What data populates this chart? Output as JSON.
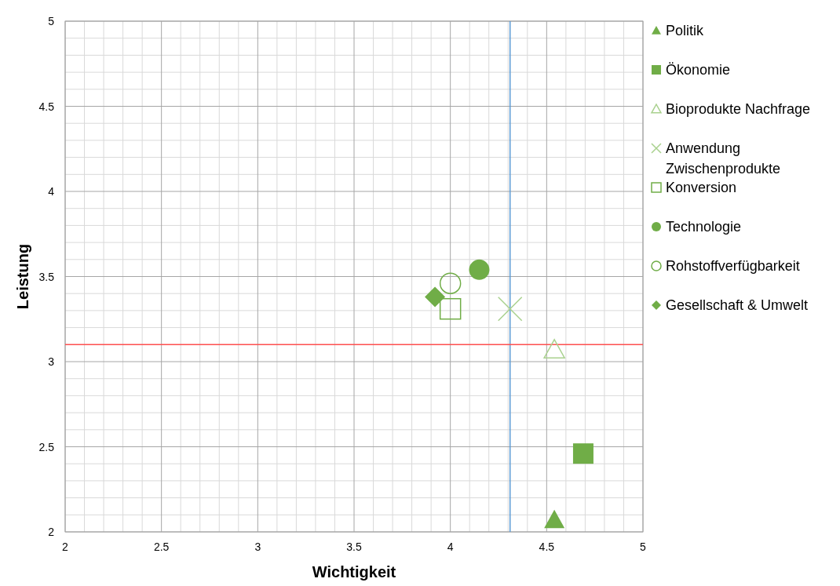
{
  "chart_data": {
    "type": "scatter",
    "xlabel": "Wichtigkeit",
    "ylabel": "Leistung",
    "xlim": [
      2,
      5
    ],
    "xticks": [
      2,
      2.5,
      3,
      3.5,
      4,
      4.5,
      5
    ],
    "ylim": [
      2,
      5
    ],
    "yticks": [
      2,
      2.5,
      3,
      3.5,
      4,
      4.5,
      5
    ],
    "grid": true,
    "legend": "right",
    "series": [
      {
        "name": "Politik",
        "color": "#70ad47",
        "marker": "triangle",
        "x": [
          4.54
        ],
        "values": [
          2.07
        ]
      },
      {
        "name": "Ökonomie",
        "color": "#70ad47",
        "marker": "square",
        "x": [
          4.69
        ],
        "values": [
          2.46
        ]
      },
      {
        "name": "Bioprodukte Nachfrage",
        "color": "#a9d18e",
        "marker": "triangle-open",
        "x": [
          4.54
        ],
        "values": [
          3.07
        ]
      },
      {
        "name": "Anwendung Zwischenprodukte",
        "color": "#a9d18e",
        "marker": "cross",
        "x": [
          4.31
        ],
        "values": [
          3.31
        ]
      },
      {
        "name": "Konversion",
        "color": "#70ad47",
        "marker": "square-open",
        "x": [
          4.0
        ],
        "values": [
          3.31
        ]
      },
      {
        "name": "Technologie",
        "color": "#70ad47",
        "marker": "circle",
        "x": [
          4.15
        ],
        "values": [
          3.54
        ]
      },
      {
        "name": "Rohstoffverfügbarkeit",
        "color": "#70ad47",
        "marker": "circle-open",
        "x": [
          4.0
        ],
        "values": [
          3.46
        ]
      },
      {
        "name": "Gesellschaft & Umwelt",
        "color": "#70ad47",
        "marker": "diamond",
        "x": [
          3.92
        ],
        "values": [
          3.38
        ]
      }
    ],
    "ref_lines": [
      {
        "axis": "x",
        "value": 4.31,
        "color": "#5b9bd5"
      },
      {
        "axis": "y",
        "value": 3.1,
        "color": "#ff5050"
      }
    ]
  }
}
